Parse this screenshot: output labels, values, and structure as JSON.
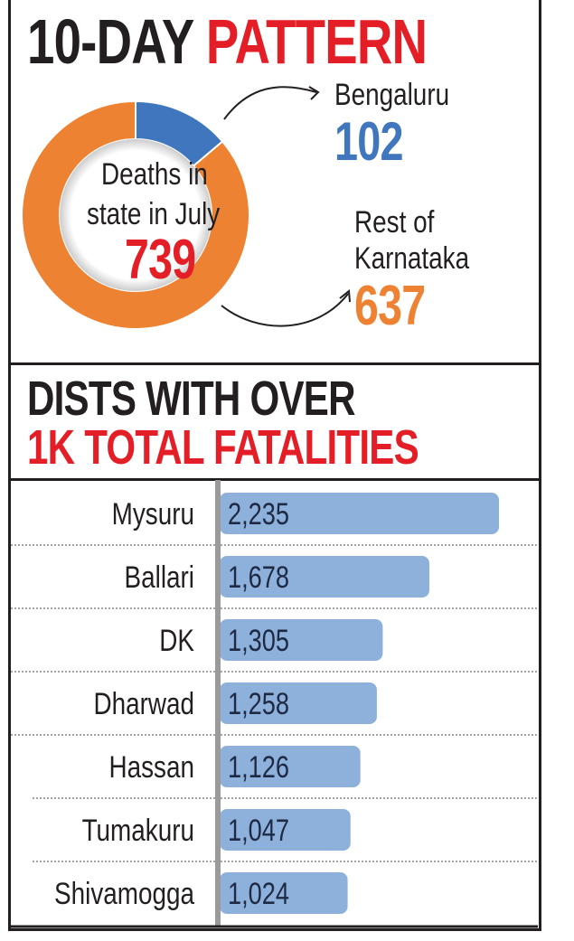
{
  "colors": {
    "orange": "#ee8233",
    "blue": "#3f76bd",
    "red": "#e31e26",
    "bar": "#8eb1dc",
    "dark": "#231f20"
  },
  "section1": {
    "title_dark": "10-DAY",
    "title_red": "PATTERN",
    "center_label_line1": "Deaths in",
    "center_label_line2": "state in July",
    "total": "739"
  },
  "section2": {
    "title_line1": "DISTS WITH OVER",
    "title_line2": "1K TOTAL FATALITIES"
  },
  "chart_data": [
    {
      "type": "pie",
      "title": "10-DAY PATTERN",
      "center_label": "Deaths in state in July",
      "total": 739,
      "slices": [
        {
          "label": "Bengaluru",
          "value": 102,
          "display": "102",
          "color": "#3f76bd"
        },
        {
          "label": "Rest of Karnataka",
          "value": 637,
          "display": "637",
          "color": "#ee8233"
        }
      ]
    },
    {
      "type": "bar",
      "orientation": "horizontal",
      "title": "DISTS WITH OVER 1K TOTAL FATALITIES",
      "categories": [
        "Mysuru",
        "Ballari",
        "DK",
        "Dharwad",
        "Hassan",
        "Tumakuru",
        "Shivamogga"
      ],
      "values": [
        2235,
        1678,
        1305,
        1258,
        1126,
        1047,
        1024
      ],
      "labels": [
        "2,235",
        "1,678",
        "1,305",
        "1,258",
        "1,126",
        "1,047",
        "1,024"
      ],
      "xlim": [
        0,
        2235
      ]
    }
  ]
}
